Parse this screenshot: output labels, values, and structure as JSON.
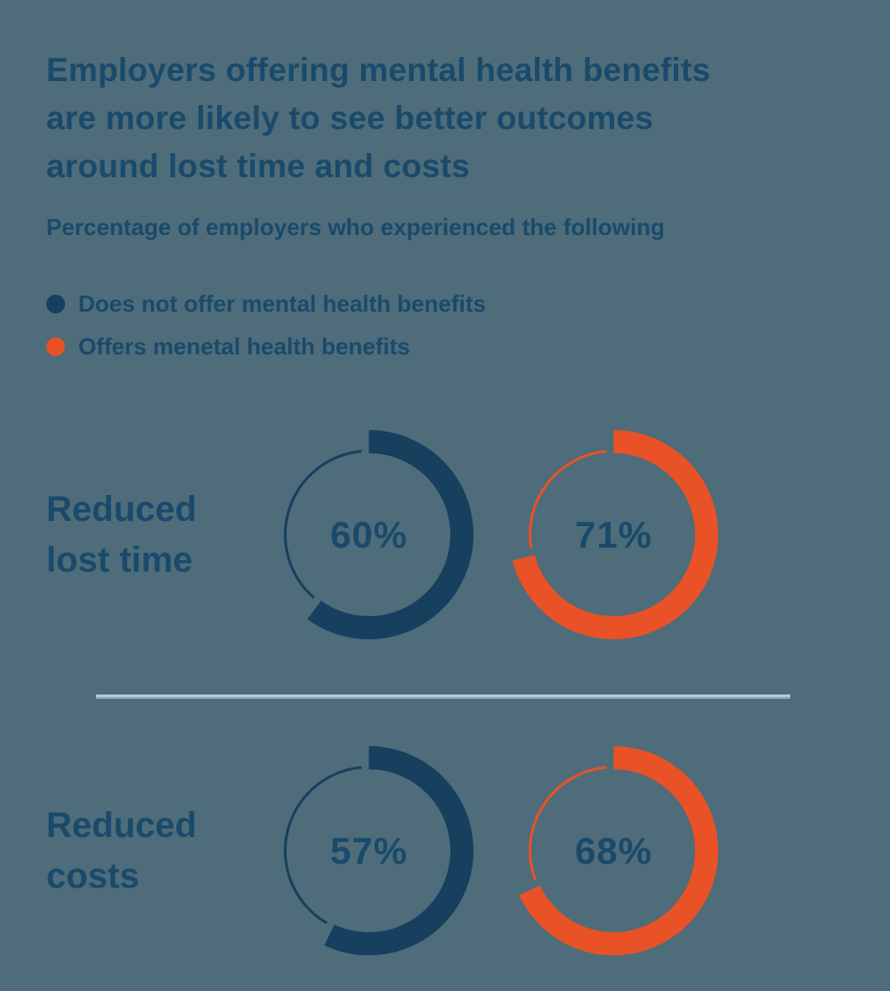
{
  "colors": {
    "background": "#4E6C7A",
    "text_navy": "#1A4A6B",
    "series_navy": "#173F5E",
    "series_orange": "#E85226",
    "divider": "#A9CEDD",
    "divider_shadow": "#95A0A8"
  },
  "header": {
    "title": "Employers offering mental health benefits\nare more likely to see better outcomes\naround lost time and costs",
    "subtitle": "Percentage of employers who experienced the following"
  },
  "chart_data": {
    "type": "donut",
    "title": "Employers offering mental health benefits are more likely to see better outcomes around lost time and costs",
    "subtitle": "Percentage of employers who experienced the following",
    "unit": "percent",
    "legend_position": "top-left",
    "categories": [
      "Reduced lost time",
      "Reduced costs"
    ],
    "category_display_labels": [
      "Reduced\nlost time",
      "Reduced\ncosts"
    ],
    "series": [
      {
        "name": "Does not offer mental health benefits",
        "color": "#173F5E",
        "values": [
          60,
          57
        ]
      },
      {
        "name": "Offers menetal health benefits",
        "color": "#E85226",
        "values": [
          71,
          68
        ]
      }
    ],
    "donut_style": "thick arc starts at 12 o'clock and sweeps clockwise proportional to value; remainder of ring drawn as thin outline with small gaps at arc ends; value label centered in navy text"
  }
}
